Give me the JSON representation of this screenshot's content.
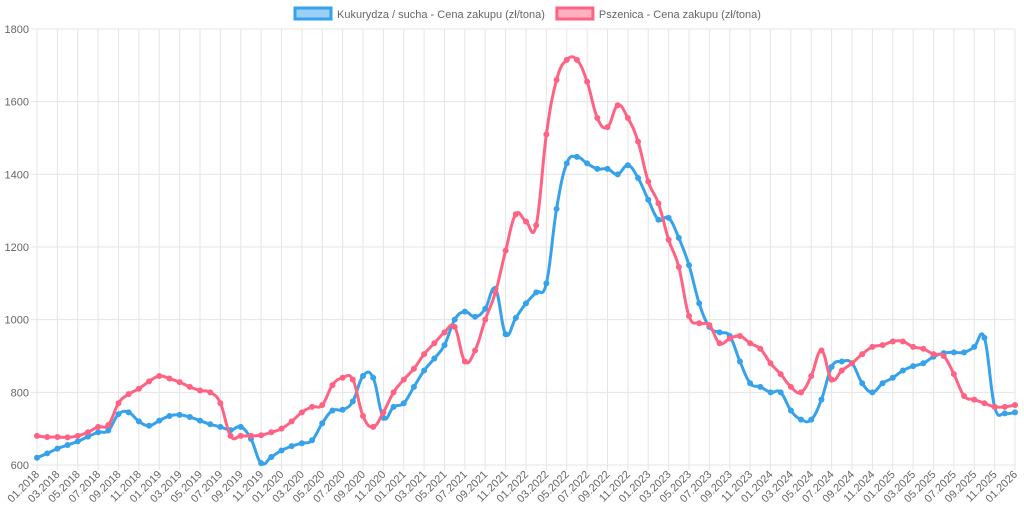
{
  "chart_data": {
    "type": "line",
    "categories": [
      "01.2018",
      null,
      "03.2018",
      null,
      "05.2018",
      null,
      "07.2018",
      null,
      "09.2018",
      null,
      "11.2018",
      null,
      "01.2019",
      null,
      "03.2019",
      null,
      "05.2019",
      null,
      "07.2019",
      null,
      "09.2019",
      null,
      "11.2019",
      null,
      "01.2020",
      null,
      "03.2020",
      null,
      "05.2020",
      null,
      "07.2020",
      null,
      "09.2020",
      null,
      "11.2020",
      null,
      "01.2021",
      null,
      "03.2021",
      null,
      "05.2021",
      null,
      "07.2021",
      null,
      "09.2021",
      null,
      "11.2021",
      null,
      "01.2022",
      null,
      "03.2022",
      null,
      "05.2022",
      null,
      "07.2022",
      null,
      "09.2022",
      null,
      "11.2022",
      null,
      "01.2023",
      null,
      "03.2023",
      null,
      "05.2023",
      null,
      "07.2023",
      null,
      "09.2023",
      null,
      "11.2023",
      null,
      "01.2024",
      null,
      "03.2024",
      null,
      "05.2024",
      null,
      "07.2024",
      null,
      "09.2024",
      null,
      "11.2024",
      null,
      "01.2025",
      null,
      "03.2025",
      null,
      "05.2025",
      null,
      "07.2025",
      null,
      "09.2025",
      null,
      "11.2025",
      null,
      "01.2026"
    ],
    "series": [
      {
        "name": "Kukurydza / sucha - Cena zakupu (zł/tona)",
        "color": "#36a2eb",
        "fill": "#9ad0f5",
        "values": [
          620,
          632,
          645,
          655,
          665,
          678,
          690,
          695,
          740,
          745,
          720,
          708,
          722,
          735,
          738,
          732,
          722,
          712,
          705,
          696,
          705,
          672,
          605,
          622,
          640,
          652,
          660,
          668,
          715,
          750,
          752,
          775,
          845,
          840,
          730,
          760,
          770,
          815,
          860,
          893,
          930,
          1000,
          1022,
          1008,
          1030,
          1085,
          960,
          1005,
          1045,
          1075,
          1100,
          1305,
          1430,
          1448,
          1430,
          1415,
          1415,
          1400,
          1425,
          1390,
          1330,
          1275,
          1280,
          1225,
          1150,
          1045,
          980,
          965,
          955,
          885,
          825,
          815,
          800,
          800,
          750,
          725,
          725,
          780,
          870,
          885,
          880,
          825,
          800,
          825,
          840,
          860,
          872,
          880,
          898,
          908,
          910,
          910,
          925,
          950,
          760,
          742,
          745
        ]
      },
      {
        "name": "Pszenica - Cena zakupu (zł/tona)",
        "color": "#ff6384",
        "fill": "#ffb1c1",
        "values": [
          680,
          677,
          677,
          676,
          680,
          690,
          705,
          710,
          770,
          795,
          810,
          830,
          845,
          838,
          828,
          815,
          805,
          800,
          770,
          680,
          680,
          680,
          682,
          690,
          700,
          720,
          745,
          760,
          765,
          820,
          840,
          835,
          735,
          705,
          745,
          800,
          835,
          865,
          905,
          935,
          965,
          980,
          885,
          915,
          1000,
          1075,
          1190,
          1290,
          1270,
          1260,
          1510,
          1660,
          1715,
          1715,
          1655,
          1555,
          1530,
          1590,
          1555,
          1490,
          1380,
          1320,
          1220,
          1145,
          1010,
          990,
          985,
          935,
          948,
          955,
          935,
          920,
          880,
          850,
          815,
          800,
          845,
          915,
          835,
          860,
          880,
          905,
          925,
          930,
          940,
          940,
          925,
          920,
          905,
          900,
          850,
          790,
          780,
          770,
          760,
          760,
          765
        ]
      }
    ],
    "ylim": [
      600,
      1800
    ],
    "yticks": [
      600,
      800,
      1000,
      1200,
      1400,
      1600,
      1800
    ],
    "grid": true,
    "legend": "top"
  }
}
